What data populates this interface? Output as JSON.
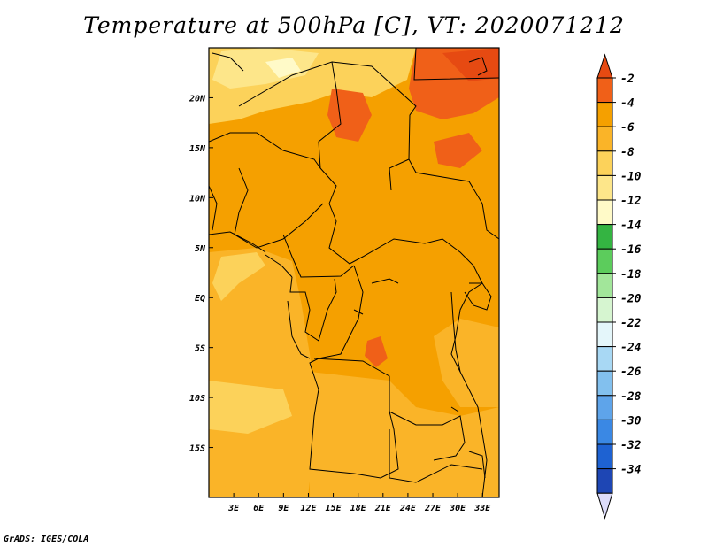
{
  "title": "Temperature at 500hPa [C], VT: 2020071212",
  "credit": "GrADS: IGES/COLA",
  "map": {
    "lon_range": [
      0,
      35
    ],
    "lat_range": [
      -20,
      25
    ],
    "lat_ticks": [
      {
        "value": 20,
        "label": "20N"
      },
      {
        "value": 15,
        "label": "15N"
      },
      {
        "value": 10,
        "label": "10N"
      },
      {
        "value": 5,
        "label": "5N"
      },
      {
        "value": 0,
        "label": "EQ"
      },
      {
        "value": -5,
        "label": "5S"
      },
      {
        "value": -10,
        "label": "10S"
      },
      {
        "value": -15,
        "label": "15S"
      }
    ],
    "lon_ticks": [
      {
        "value": 3,
        "label": "3E"
      },
      {
        "value": 6,
        "label": "6E"
      },
      {
        "value": 9,
        "label": "9E"
      },
      {
        "value": 12,
        "label": "12E"
      },
      {
        "value": 15,
        "label": "15E"
      },
      {
        "value": 18,
        "label": "18E"
      },
      {
        "value": 21,
        "label": "21E"
      },
      {
        "value": 24,
        "label": "24E"
      },
      {
        "value": 27,
        "label": "27E"
      },
      {
        "value": 30,
        "label": "30E"
      },
      {
        "value": 33,
        "label": "33E"
      }
    ]
  },
  "colorbar": {
    "levels": [
      {
        "label": "-2",
        "color": "#f06018"
      },
      {
        "label": "-4",
        "color": "#f5a000"
      },
      {
        "label": "-6",
        "color": "#fab428"
      },
      {
        "label": "-8",
        "color": "#fcd25a"
      },
      {
        "label": "-10",
        "color": "#fde68a"
      },
      {
        "label": "-12",
        "color": "#fffac8"
      },
      {
        "label": "-14",
        "color": "#34b442"
      },
      {
        "label": "-16",
        "color": "#5ccc5c"
      },
      {
        "label": "-18",
        "color": "#a2e69a"
      },
      {
        "label": "-20",
        "color": "#d6f5d0"
      },
      {
        "label": "-22",
        "color": "#e4f6fa"
      },
      {
        "label": "-24",
        "color": "#a8d8f4"
      },
      {
        "label": "-26",
        "color": "#82c0ee"
      },
      {
        "label": "-28",
        "color": "#5ea4ea"
      },
      {
        "label": "-30",
        "color": "#3a88e4"
      },
      {
        "label": "-32",
        "color": "#1e62d2"
      },
      {
        "label": "-34",
        "color": "#1e46b4"
      }
    ],
    "top_color": "#e64a12",
    "bottom_color": "#101a78",
    "under_color": "#dcdcfa"
  }
}
